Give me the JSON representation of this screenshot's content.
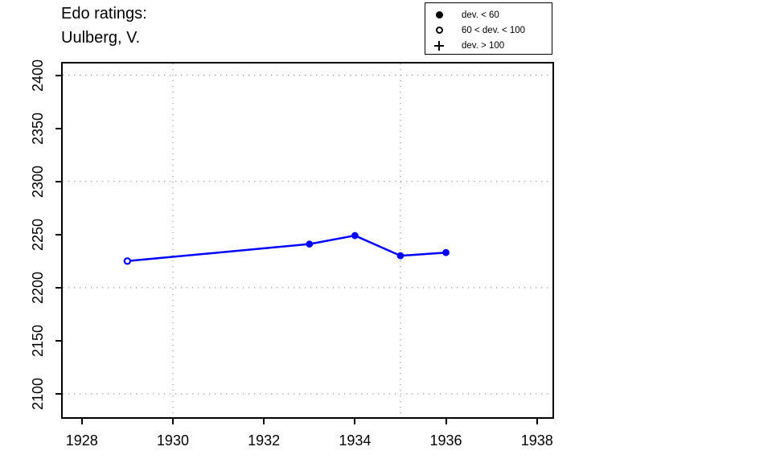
{
  "title": {
    "line1": "Edo ratings:",
    "line2": "Uulberg, V."
  },
  "legend": {
    "items": [
      {
        "symbol": "filled-circle",
        "label": "dev. < 60"
      },
      {
        "symbol": "open-circle",
        "label": "60 < dev. < 100"
      },
      {
        "symbol": "plus",
        "label": "dev. > 100"
      }
    ]
  },
  "chart_data": {
    "type": "line",
    "title": "Edo ratings: Uulberg, V.",
    "xlabel": "",
    "ylabel": "",
    "xlim": [
      1927.58,
      1938.34
    ],
    "ylim": [
      2078,
      2411
    ],
    "x_ticks": [
      1928,
      1930,
      1932,
      1934,
      1936,
      1938
    ],
    "y_ticks": [
      2100,
      2150,
      2200,
      2250,
      2300,
      2350,
      2400
    ],
    "grid": "dotted",
    "grid_x_years": [
      1930,
      1935
    ],
    "grid_y_ratings": [
      2100,
      2200,
      2300,
      2400
    ],
    "grid_color": "#9a9a9a",
    "legend_position": "top-right",
    "series": [
      {
        "name": "Uulberg, V.",
        "color": "#0000FF",
        "x": [
          1929,
          1933,
          1934,
          1935,
          1936
        ],
        "y": [
          2225,
          2241,
          2249,
          2230,
          2233
        ],
        "markers": [
          "open-circle",
          "filled-circle",
          "filled-circle",
          "filled-circle",
          "filled-circle"
        ]
      }
    ]
  }
}
